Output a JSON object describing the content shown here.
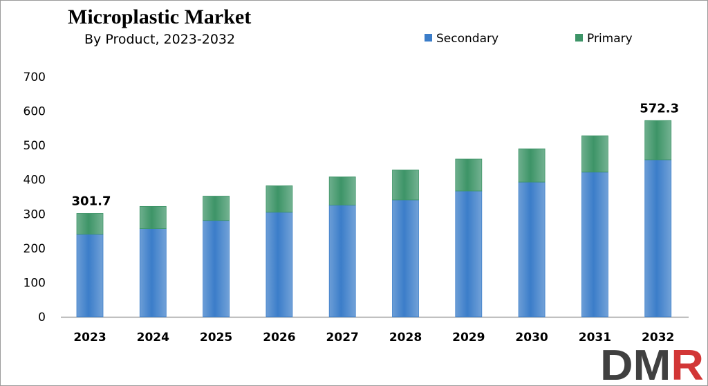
{
  "title": "Microplastic Market",
  "subtitle": "By Product, 2023-2032",
  "logo_text": "DMR",
  "colors": {
    "secondary": "#3b7dc9",
    "primary": "#3d9467",
    "logo_dark": "#404040",
    "logo_red": "#d23636"
  },
  "chart_data": {
    "type": "bar",
    "stacked": true,
    "title": "Microplastic Market",
    "subtitle": "By Product, 2023-2032",
    "categories": [
      "2023",
      "2024",
      "2025",
      "2026",
      "2027",
      "2028",
      "2029",
      "2030",
      "2031",
      "2032"
    ],
    "series": [
      {
        "name": "Secondary",
        "color": "#3b7dc9",
        "values": [
          241,
          257,
          281,
          305,
          326,
          341,
          367,
          393,
          422,
          458
        ]
      },
      {
        "name": "Primary",
        "color": "#3d9467",
        "values": [
          60.7,
          65,
          71,
          77,
          82,
          87,
          93,
          97,
          106,
          114.3
        ]
      }
    ],
    "ylim": [
      0,
      700
    ],
    "yticks": [
      0,
      100,
      200,
      300,
      400,
      500,
      600,
      700
    ],
    "data_labels": [
      {
        "category": "2023",
        "text": "301.7"
      },
      {
        "category": "2032",
        "text": "572.3"
      }
    ],
    "legend_position": "top-right",
    "grid": false
  }
}
